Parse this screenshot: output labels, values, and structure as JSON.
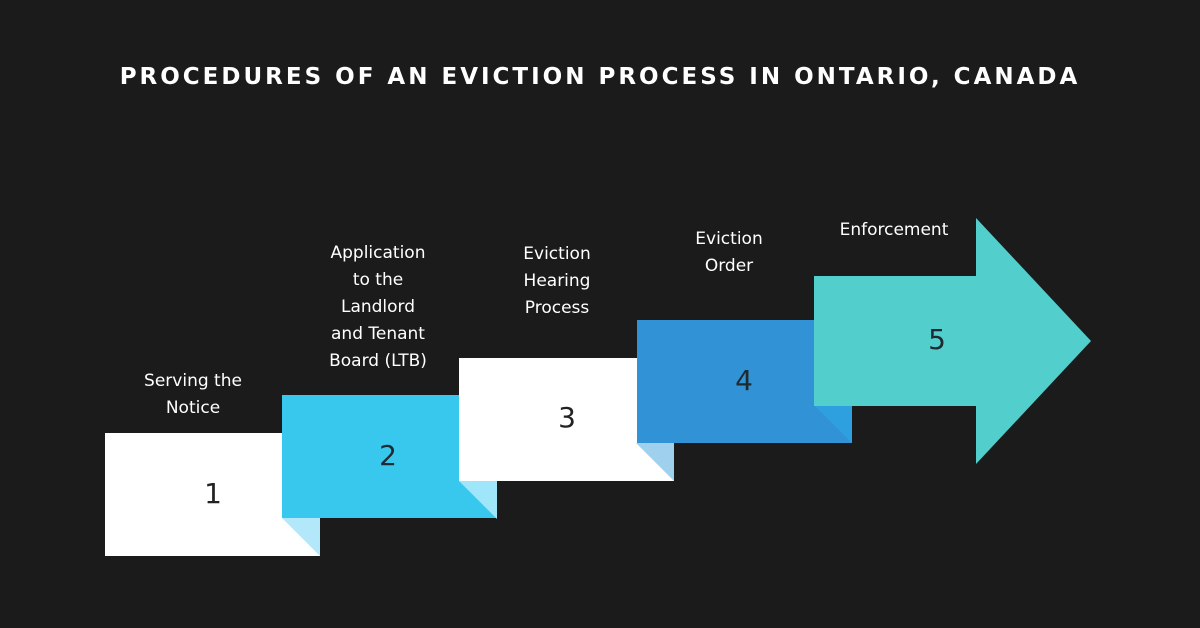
{
  "title": "PROCEDURES OF AN EVICTION PROCESS IN ONTARIO, CANADA",
  "colors": {
    "background": "#1b1b1b",
    "text_light": "#ffffff",
    "text_dark": "#222222",
    "white_card": "#ffffff",
    "white_fold": "#b3e7fa",
    "cyan_card": "#38c8ee",
    "cyan_fold": "#9fe6fb",
    "blue_card": "#3193d6",
    "blue_fold": "#2ea0e0",
    "teal_arrow": "#52cfcc"
  },
  "steps": [
    {
      "number": "1",
      "label": "Serving the\nNotice"
    },
    {
      "number": "2",
      "label": "Application\nto the\nLandlord\nand Tenant\nBoard (LTB)"
    },
    {
      "number": "3",
      "label": "Eviction\nHearing\nProcess"
    },
    {
      "number": "4",
      "label": "Eviction\nOrder"
    },
    {
      "number": "5",
      "label": "Enforcement"
    }
  ]
}
